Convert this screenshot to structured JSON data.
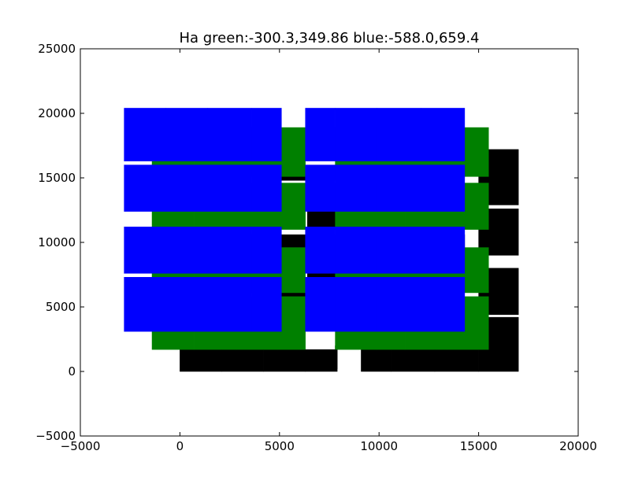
{
  "chart_data": {
    "type": "scatter",
    "title": "Ha green:-300.3,349.86 blue:-588.0,659.4",
    "xlabel": "",
    "ylabel": "",
    "xlim": [
      -5000,
      20000
    ],
    "ylim": [
      -5000,
      25000
    ],
    "xticks": [
      -5000,
      0,
      5000,
      10000,
      15000,
      20000
    ],
    "yticks": [
      -5000,
      0,
      5000,
      10000,
      15000,
      20000,
      25000
    ],
    "xtick_labels": [
      "−5000",
      "0",
      "5000",
      "10000",
      "15000",
      "20000"
    ],
    "ytick_labels": [
      "−5000",
      "0",
      "5000",
      "10000",
      "15000",
      "20000",
      "25000"
    ],
    "grid": false,
    "legend": false,
    "series": [
      {
        "color": "#000000",
        "shape": "rectangle",
        "rects": [
          [
            0,
            0,
            2100,
            1700
          ],
          [
            2100,
            0,
            4200,
            1700
          ],
          [
            4200,
            0,
            6300,
            1700
          ],
          [
            6300,
            0,
            7900,
            1700
          ],
          [
            9100,
            0,
            10600,
            1700
          ],
          [
            10600,
            0,
            12800,
            1700
          ],
          [
            12800,
            0,
            15000,
            1700
          ],
          [
            15000,
            0,
            17000,
            4200
          ],
          [
            15000,
            4400,
            17000,
            8000
          ],
          [
            15000,
            9000,
            17000,
            12600
          ],
          [
            15000,
            12900,
            17000,
            17200
          ],
          [
            6400,
            11000,
            7900,
            12700
          ],
          [
            5100,
            9600,
            6300,
            10600
          ],
          [
            6400,
            9600,
            7800,
            10600
          ],
          [
            1400,
            9600,
            5000,
            10600
          ],
          [
            9000,
            9600,
            14300,
            10600
          ],
          [
            5100,
            14800,
            6300,
            15600
          ],
          [
            6400,
            14800,
            7900,
            15600
          ],
          [
            6400,
            5800,
            7900,
            7600
          ],
          [
            5100,
            5800,
            6300,
            6100
          ],
          [
            7800,
            200,
            7900,
            2000
          ]
        ]
      },
      {
        "color": "#008000",
        "shape": "rectangle",
        "rects": [
          [
            -1400,
            1700,
            700,
            5800
          ],
          [
            700,
            1700,
            2800,
            5800
          ],
          [
            2800,
            1700,
            4900,
            5800
          ],
          [
            4900,
            1700,
            6300,
            5800
          ],
          [
            7800,
            1700,
            9900,
            5800
          ],
          [
            9900,
            1700,
            11300,
            5800
          ],
          [
            11300,
            1700,
            13400,
            5800
          ],
          [
            13400,
            1700,
            15500,
            5800
          ],
          [
            -1400,
            6100,
            700,
            9600
          ],
          [
            700,
            6100,
            2800,
            9600
          ],
          [
            2800,
            6100,
            4900,
            9600
          ],
          [
            4900,
            6100,
            6300,
            9600
          ],
          [
            7800,
            6100,
            9900,
            9600
          ],
          [
            9900,
            6100,
            11300,
            9600
          ],
          [
            11300,
            6100,
            13400,
            9600
          ],
          [
            13400,
            6100,
            15500,
            9600
          ],
          [
            -1400,
            11000,
            700,
            14600
          ],
          [
            700,
            11000,
            2800,
            14600
          ],
          [
            2800,
            11000,
            4900,
            14600
          ],
          [
            4900,
            11000,
            6300,
            14600
          ],
          [
            7800,
            11000,
            9900,
            14600
          ],
          [
            9900,
            11000,
            11300,
            14600
          ],
          [
            11300,
            11000,
            13400,
            14600
          ],
          [
            13400,
            11000,
            15500,
            14600
          ],
          [
            -1400,
            15100,
            700,
            18900
          ],
          [
            700,
            15100,
            2800,
            18900
          ],
          [
            2800,
            15100,
            4900,
            18900
          ],
          [
            4900,
            15100,
            6300,
            18900
          ],
          [
            7800,
            15100,
            9900,
            18900
          ],
          [
            9900,
            15100,
            11300,
            18900
          ],
          [
            11300,
            15100,
            13400,
            18900
          ],
          [
            13400,
            15100,
            15500,
            18900
          ]
        ]
      },
      {
        "color": "#0000ff",
        "shape": "rectangle",
        "rects": [
          [
            -2800,
            3100,
            -700,
            7300
          ],
          [
            -700,
            3100,
            1400,
            7300
          ],
          [
            1400,
            3100,
            3600,
            7300
          ],
          [
            3600,
            3100,
            5100,
            7300
          ],
          [
            6300,
            3100,
            7800,
            7300
          ],
          [
            7800,
            3100,
            9900,
            7300
          ],
          [
            9900,
            3100,
            12100,
            7300
          ],
          [
            12100,
            3100,
            14300,
            7300
          ],
          [
            -2800,
            7600,
            -700,
            11200
          ],
          [
            -700,
            7600,
            1400,
            11200
          ],
          [
            1400,
            7600,
            3600,
            11200
          ],
          [
            3600,
            7600,
            5100,
            11200
          ],
          [
            6300,
            7600,
            7800,
            11200
          ],
          [
            7800,
            7600,
            9900,
            11200
          ],
          [
            9900,
            7600,
            12100,
            11200
          ],
          [
            12100,
            7600,
            14300,
            11200
          ],
          [
            -2800,
            12400,
            -700,
            16000
          ],
          [
            -700,
            12400,
            1400,
            16000
          ],
          [
            1400,
            12400,
            3600,
            16000
          ],
          [
            3600,
            12400,
            5100,
            16000
          ],
          [
            6300,
            12400,
            7800,
            16000
          ],
          [
            7800,
            12400,
            9900,
            16000
          ],
          [
            9900,
            12400,
            12100,
            16000
          ],
          [
            12100,
            12400,
            14300,
            16000
          ],
          [
            -2800,
            16300,
            -700,
            20400
          ],
          [
            -700,
            16300,
            1400,
            20400
          ],
          [
            1400,
            16300,
            3600,
            20400
          ],
          [
            3600,
            16300,
            5100,
            20400
          ],
          [
            6300,
            16300,
            7800,
            20400
          ],
          [
            7800,
            16300,
            9900,
            20400
          ],
          [
            9900,
            16300,
            12100,
            20400
          ],
          [
            12100,
            16300,
            14300,
            20400
          ]
        ]
      }
    ]
  }
}
